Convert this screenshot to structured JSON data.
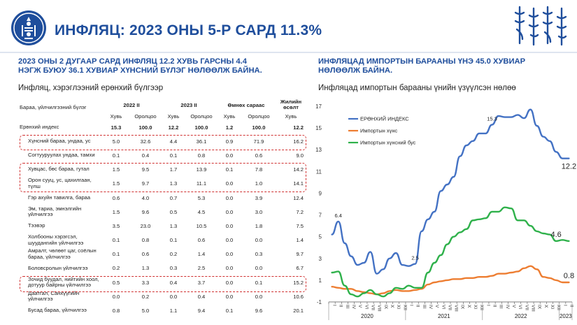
{
  "header": {
    "title": "ИНФЛЯЦ: 2023 ОНЫ 5-Р САРД 11.3%",
    "logo_icon": "soyombo-emblem-icon",
    "script_icon": "mongolian-script-logo-icon",
    "accent": "#1f4e9c"
  },
  "left": {
    "subhead_line1": "2023 ОНЫ 2 ДУГААР САРД ИНФЛЯЦ 12.2 ХУВЬ ГАРСНЫ 4.4",
    "subhead_line2": "НЭГЖ БУЮУ 36.1 ХУВИАР ХҮНСНИЙ БҮЛЭГ НӨЛӨӨЛЖ БАЙНА.",
    "table_title": "Инфляц, хэрэглээний ерөнхий бүлгээр",
    "table": {
      "col_category": "Бараа, үйлчилгээний бүлэг",
      "groups": [
        "2022 II",
        "2023 II",
        "Өмнөх сараас",
        "Жилийн өсөлт"
      ],
      "subcols": [
        "Хувь",
        "Оролцоо",
        "Хувь",
        "Оролцоо",
        "Хувь",
        "Оролцоо",
        "Хувь"
      ],
      "rows": [
        {
          "name": "Ерөнхий индекс",
          "values": [
            "15.3",
            "100.0",
            "12.2",
            "100.0",
            "1.2",
            "100.0",
            "12.2"
          ]
        },
        {
          "name": "Хүнсний бараа, ундаа, ус",
          "values": [
            "5.0",
            "32.6",
            "4.4",
            "36.1",
            "0.9",
            "71.9",
            "16.2"
          ]
        },
        {
          "name": "Согтууруулах ундаа, тамхи",
          "values": [
            "0.1",
            "0.4",
            "0.1",
            "0.8",
            "0.0",
            "0.6",
            "9.0"
          ]
        },
        {
          "name": "Хувцас, бөс бараа, гутал",
          "values": [
            "1.5",
            "9.5",
            "1.7",
            "13.9",
            "0.1",
            "7.8",
            "14.2"
          ]
        },
        {
          "name": "Орон сууц, ус, цахилгаан, түлш",
          "values": [
            "1.5",
            "9.7",
            "1.3",
            "11.1",
            "0.0",
            "1.0",
            "14.1"
          ]
        },
        {
          "name": "Гэр ахуйн тавилга, бараа",
          "values": [
            "0.6",
            "4.0",
            "0.7",
            "5.3",
            "0.0",
            "3.9",
            "12.4"
          ]
        },
        {
          "name": "Эм, тариа, эмнэлгийн үйлчилгээ",
          "values": [
            "1.5",
            "9.6",
            "0.5",
            "4.5",
            "0.0",
            "3.0",
            "7.2"
          ]
        },
        {
          "name": "Тээвэр",
          "values": [
            "3.5",
            "23.0",
            "1.3",
            "10.5",
            "0.0",
            "1.8",
            "7.5"
          ]
        },
        {
          "name": "Холбооны хэрэгсэл, шуудангийн үйлчилгээ",
          "values": [
            "0.1",
            "0.8",
            "0.1",
            "0.6",
            "0.0",
            "0.0",
            "1.4"
          ]
        },
        {
          "name": "Амралт, чөлөөт цаг, соёлын бараа, үйлчилгээ",
          "values": [
            "0.1",
            "0.6",
            "0.2",
            "1.4",
            "0.0",
            "0.3",
            "9.7"
          ]
        },
        {
          "name": "Боловсролын үйлчилгээ",
          "values": [
            "0.2",
            "1.3",
            "0.3",
            "2.5",
            "0.0",
            "0.0",
            "6.7"
          ]
        },
        {
          "name": "Зочид буудал, нийтийн хоол, дотуур байрны үйлчилгээ",
          "values": [
            "0.5",
            "3.3",
            "0.4",
            "3.7",
            "0.0",
            "0.1",
            "15.2"
          ]
        },
        {
          "name": "Даатгал, Санхүүгийн үйлчилгээ",
          "values": [
            "0.0",
            "0.2",
            "0.0",
            "0.4",
            "0.0",
            "0.0",
            "10.6"
          ]
        },
        {
          "name": "Бусад бараа, үйлчилгээ",
          "values": [
            "0.8",
            "5.0",
            "1.1",
            "9.4",
            "0.1",
            "9.6",
            "20.1"
          ]
        }
      ]
    }
  },
  "right": {
    "subhead_line1": "ИНФЛЯЦАД ИМПОРТЫН БАРААНЫ ҮНЭ 45.0 ХУВИАР",
    "subhead_line2": "НӨЛӨӨЛЖ БАЙНА.",
    "chart_title": "Инфляцад импортын барааны үнийн үзүүлсэн нөлөө"
  },
  "chart_data": {
    "type": "line",
    "title": "Инфляцад импортын барааны үнийн үзүүлсэн нөлөө",
    "ylim": [
      -1,
      17
    ],
    "yticks": [
      "-1",
      "1",
      "3",
      "5",
      "7",
      "9",
      "11",
      "13",
      "15",
      "17"
    ],
    "x": [
      "I",
      "II",
      "III",
      "IV",
      "V",
      "VI",
      "VII",
      "VIII",
      "IX",
      "X",
      "XI",
      "XII",
      "I",
      "II",
      "III",
      "IV",
      "V",
      "VI",
      "VII",
      "VIII",
      "IX",
      "X",
      "XI",
      "XII",
      "I",
      "II",
      "III",
      "IV",
      "V",
      "VI",
      "VII",
      "VIII",
      "IX",
      "X",
      "XI",
      "XII",
      "I",
      "II"
    ],
    "year_labels": [
      {
        "label": "2020",
        "start": 0,
        "end": 11
      },
      {
        "label": "2021",
        "start": 12,
        "end": 23
      },
      {
        "label": "2022",
        "start": 24,
        "end": 35
      },
      {
        "label": "2023",
        "start": 36,
        "end": 37
      }
    ],
    "legend_position": "top-left",
    "grid": false,
    "series": [
      {
        "name": "ЕРӨНХИЙ ИНДЕКС",
        "color": "#4472c4",
        "values": [
          5.2,
          6.4,
          4.4,
          3.2,
          2.4,
          2.6,
          3.6,
          1.6,
          2.0,
          3.0,
          3.5,
          2.4,
          2.3,
          2.5,
          5.5,
          6.6,
          7.3,
          9.2,
          9.8,
          10.5,
          12.4,
          13.4,
          13.8,
          14.5,
          14.5,
          15.3,
          16.1,
          16.0,
          16.0,
          16.2,
          15.9,
          16.7,
          15.2,
          14.2,
          13.8,
          12.8,
          12.2,
          12.2
        ],
        "labels": [
          {
            "index": 1,
            "text": "6.4"
          },
          {
            "index": 13,
            "text": "2.5"
          },
          {
            "index": 25,
            "text": "15.3"
          },
          {
            "index": 37,
            "text": "12.2"
          }
        ]
      },
      {
        "name": "Импортын хүнс",
        "color": "#ed7d31",
        "values": [
          0.4,
          0.3,
          0.2,
          0.2,
          0.0,
          -0.1,
          -0.2,
          -0.3,
          -0.2,
          0.0,
          0.1,
          0.0,
          0.0,
          0.1,
          0.2,
          0.6,
          0.8,
          0.9,
          1.0,
          1.1,
          1.1,
          1.2,
          1.2,
          1.3,
          1.3,
          1.4,
          1.6,
          1.6,
          1.7,
          1.8,
          2.1,
          2.3,
          2.0,
          1.3,
          1.2,
          1.0,
          0.8,
          0.8
        ],
        "labels": [
          {
            "index": 37,
            "text": "0.8"
          }
        ]
      },
      {
        "name": "Импортын хүнсний бус",
        "color": "#2fb14b",
        "values": [
          1.7,
          1.8,
          0.5,
          -0.3,
          -0.5,
          -0.2,
          0.1,
          -0.3,
          -0.5,
          -0.2,
          0.3,
          0.2,
          0.5,
          0.3,
          0.3,
          1.7,
          2.6,
          3.3,
          4.3,
          5.0,
          5.4,
          5.7,
          6.5,
          6.6,
          6.7,
          7.3,
          7.3,
          7.7,
          7.6,
          6.5,
          6.5,
          6.0,
          5.5,
          5.3,
          5.2,
          4.6,
          4.7,
          4.6
        ],
        "labels": [
          {
            "index": 35,
            "text": "4.6"
          }
        ]
      }
    ]
  }
}
